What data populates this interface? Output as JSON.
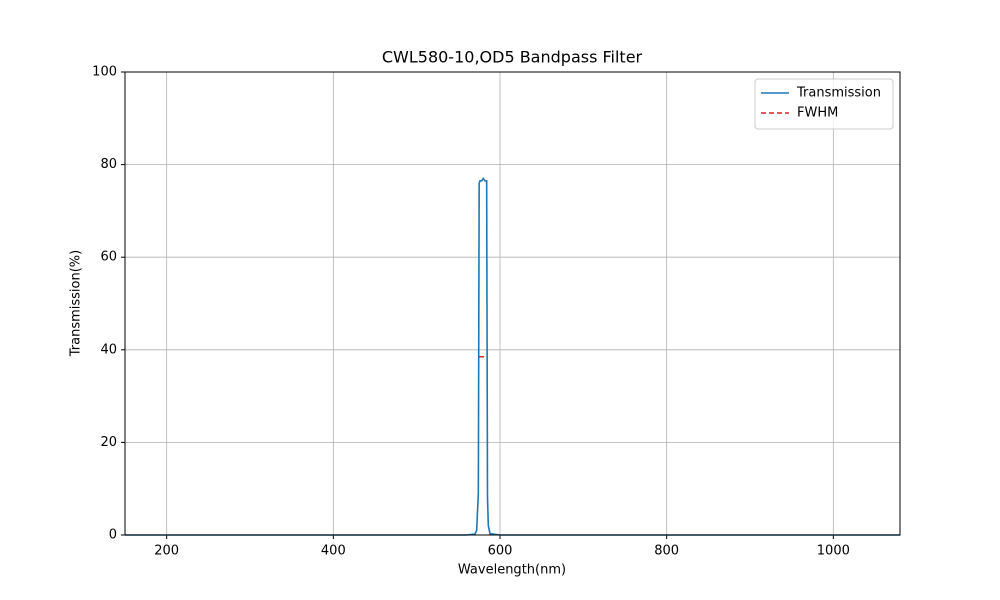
{
  "chart_data": {
    "type": "line",
    "title": "CWL580-10,OD5 Bandpass Filter",
    "x_label": "Wavelength(nm)",
    "y_label": "Transmission(%)",
    "series": [
      {
        "name": "Transmission",
        "color": "#1f77b4",
        "style": "solid",
        "x": [
          150,
          560,
          570,
          572,
          574,
          575,
          576,
          578,
          580,
          582,
          584,
          585,
          586,
          588,
          600,
          1080
        ],
        "values": [
          0,
          0,
          0.2,
          1,
          9,
          76,
          76.5,
          76.5,
          77,
          76.5,
          76.5,
          8,
          2,
          0.3,
          0,
          0
        ]
      },
      {
        "name": "FWHM",
        "color": "#d62728",
        "style": "dashed",
        "x": [
          575,
          585
        ],
        "values": [
          38.5,
          38.5
        ]
      }
    ],
    "xlim": [
      150,
      1080
    ],
    "xticks": [
      200,
      400,
      600,
      800,
      1000
    ],
    "ylim": [
      0,
      100
    ],
    "yticks": [
      0,
      20,
      40,
      60,
      80,
      100
    ],
    "grid": true,
    "legend": "upper right"
  }
}
